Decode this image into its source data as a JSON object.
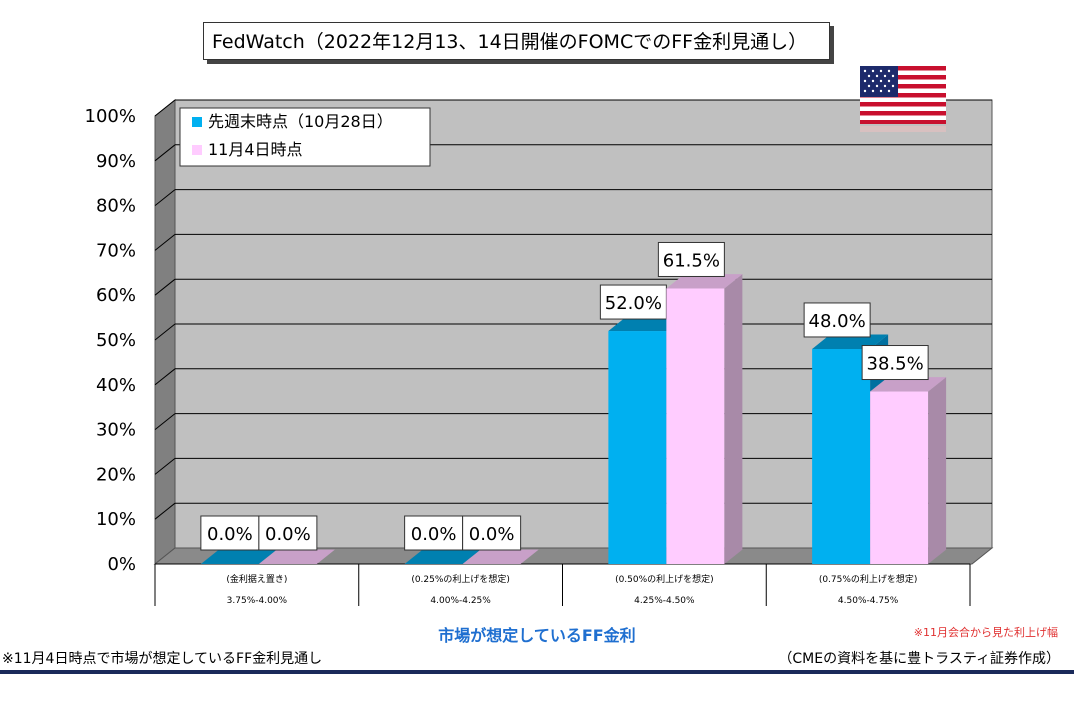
{
  "title": "FedWatch（2022年12月13、14日開催のFOMCでのFF金利見通し）",
  "x_axis_title": "市場が想定しているFF金利",
  "note_red": "※11月会合から見た利上げ幅",
  "footnote_left": "※11月4日時点で市場が想定しているFF金利見通し",
  "footnote_right": "（CMEの資料を基に豊トラスティ証券作成）",
  "flag_icon": "us-flag-icon",
  "colors": {
    "series1": "#00b0f0",
    "series1_top": "#0080b0",
    "series2": "#ffccff",
    "series2_side": "#a88aa8",
    "wall": "#c0c0c0",
    "accent_title": "#1f6fd0"
  },
  "chart_data": {
    "type": "bar",
    "title": "FedWatch（2022年12月13、14日開催のFOMCでのFF金利見通し）",
    "xlabel": "市場が想定しているFF金利",
    "ylabel": "",
    "ylim": [
      0,
      100
    ],
    "y_ticks": [
      "0%",
      "10%",
      "20%",
      "30%",
      "40%",
      "50%",
      "60%",
      "70%",
      "80%",
      "90%",
      "100%"
    ],
    "categories": [
      {
        "note": "(金利据え置き)",
        "range": "3.75%-4.00%"
      },
      {
        "note": "(0.25%の利上げを想定)",
        "range": "4.00%-4.25%"
      },
      {
        "note": "(0.50%の利上げを想定)",
        "range": "4.25%-4.50%"
      },
      {
        "note": "(0.75%の利上げを想定)",
        "range": "4.50%-4.75%"
      }
    ],
    "series": [
      {
        "name": "先週末時点（10月28日）",
        "values": [
          0.0,
          0.0,
          52.0,
          48.0
        ],
        "labels": [
          "0.0%",
          "0.0%",
          "52.0%",
          "48.0%"
        ]
      },
      {
        "name": "11月4日時点",
        "values": [
          0.0,
          0.0,
          61.5,
          38.5
        ],
        "labels": [
          "0.0%",
          "0.0%",
          "61.5%",
          "38.5%"
        ]
      }
    ],
    "legend_position": "top-left",
    "grid": true
  }
}
